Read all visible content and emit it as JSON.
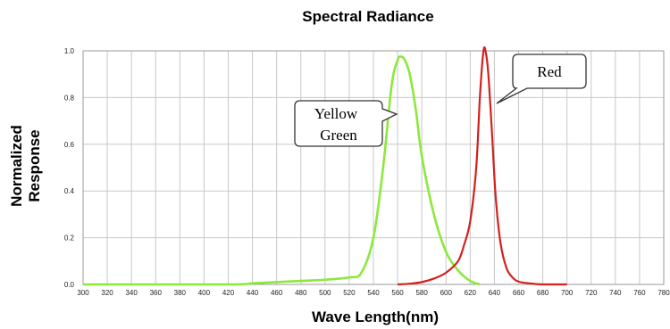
{
  "chart_data": {
    "type": "line",
    "title": "Spectral Radiance",
    "xlabel": "Wave Length(nm)",
    "ylabel_lines": [
      "Normalized",
      "Response"
    ],
    "xlim": [
      300,
      780
    ],
    "ylim": [
      0,
      1.0
    ],
    "x_ticks": [
      300,
      320,
      340,
      360,
      380,
      400,
      420,
      440,
      460,
      480,
      500,
      520,
      540,
      560,
      580,
      600,
      620,
      640,
      660,
      680,
      700,
      720,
      740,
      760,
      780
    ],
    "y_ticks": [
      "0.0",
      "0.2",
      "0.4",
      "0.6",
      "0.8",
      "1.0"
    ],
    "grid": true,
    "series": [
      {
        "name": "Yellow Green",
        "color": "#8de83c",
        "callout_lines": [
          "Yellow",
          "Green"
        ],
        "x": [
          300,
          420,
          440,
          460,
          480,
          500,
          520,
          530,
          540,
          548,
          555,
          560,
          563,
          566,
          570,
          575,
          580,
          590,
          600,
          610,
          620,
          628
        ],
        "y": [
          0.0,
          0.0,
          0.005,
          0.01,
          0.015,
          0.02,
          0.03,
          0.05,
          0.2,
          0.5,
          0.85,
          0.96,
          0.975,
          0.96,
          0.9,
          0.75,
          0.55,
          0.3,
          0.14,
          0.06,
          0.015,
          0.0
        ]
      },
      {
        "name": "Red",
        "color": "#d42020",
        "callout_lines": [
          "Red"
        ],
        "x": [
          560,
          570,
          580,
          590,
          600,
          610,
          615,
          620,
          625,
          628,
          631,
          633,
          635,
          638,
          641,
          645,
          650,
          655,
          660,
          670,
          680,
          700
        ],
        "y": [
          0.0,
          0.003,
          0.01,
          0.025,
          0.05,
          0.1,
          0.17,
          0.27,
          0.5,
          0.8,
          1.0,
          0.99,
          0.9,
          0.65,
          0.38,
          0.18,
          0.07,
          0.03,
          0.012,
          0.004,
          0.0,
          0.0
        ]
      }
    ]
  }
}
